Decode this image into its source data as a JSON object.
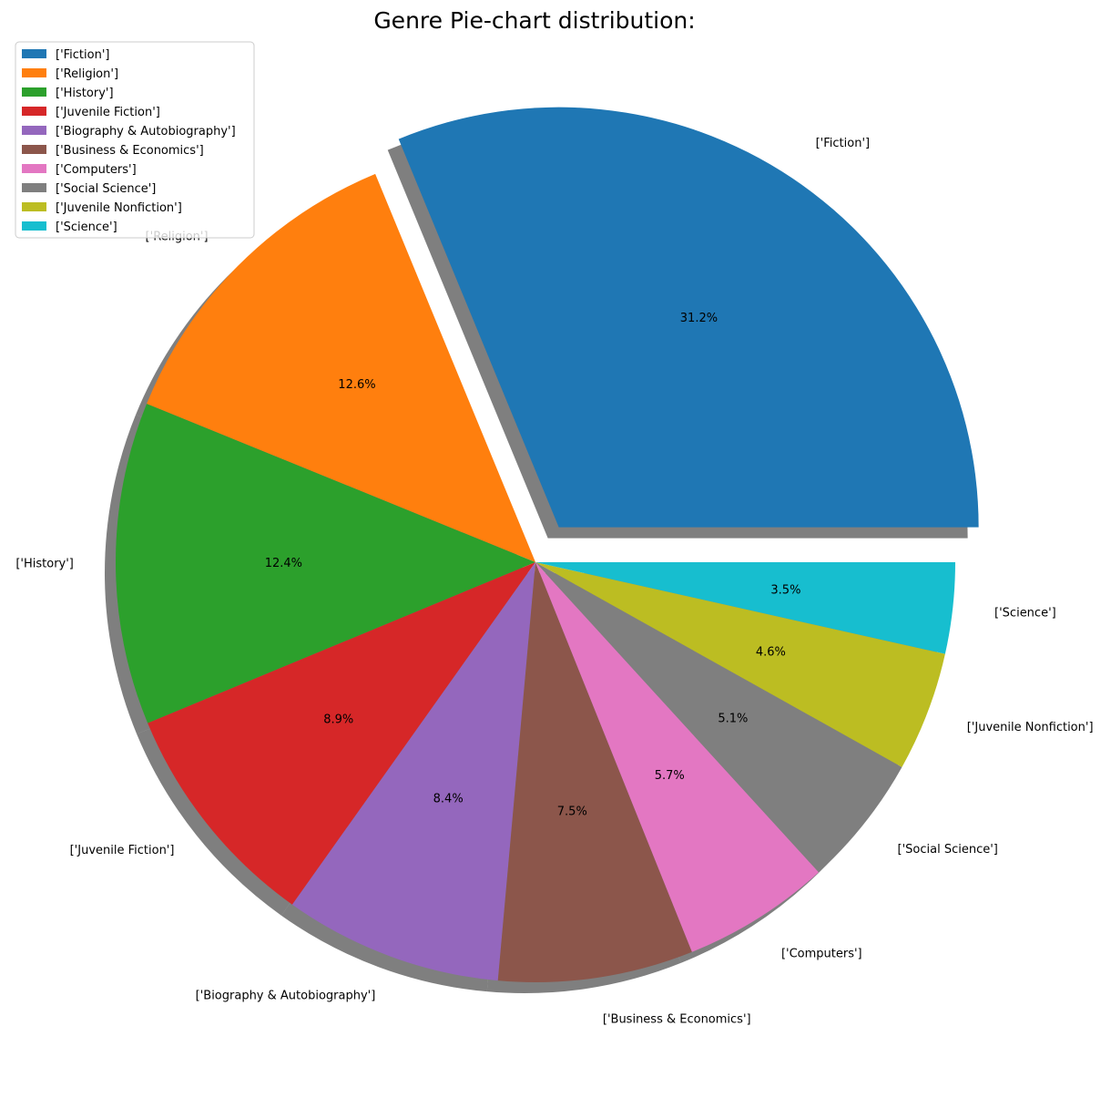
{
  "chart_data": {
    "type": "pie",
    "title": "Genre Pie-chart distribution:",
    "legend_position": "top-left",
    "shadow": true,
    "start_angle": 0,
    "direction": "counterclockwise",
    "slices": [
      {
        "label": "['Fiction']",
        "value": 31.2,
        "pct_text": "31.2%",
        "color": "#1f77b4",
        "exploded": true
      },
      {
        "label": "['Religion']",
        "value": 12.6,
        "pct_text": "12.6%",
        "color": "#ff7f0e",
        "exploded": false
      },
      {
        "label": "['History']",
        "value": 12.4,
        "pct_text": "12.4%",
        "color": "#2ca02c",
        "exploded": false
      },
      {
        "label": "['Juvenile Fiction']",
        "value": 8.9,
        "pct_text": "8.9%",
        "color": "#d62728",
        "exploded": false
      },
      {
        "label": "['Biography & Autobiography']",
        "value": 8.4,
        "pct_text": "8.4%",
        "color": "#9467bd",
        "exploded": false
      },
      {
        "label": "['Business & Economics']",
        "value": 7.5,
        "pct_text": "7.5%",
        "color": "#8c564b",
        "exploded": false
      },
      {
        "label": "['Computers']",
        "value": 5.7,
        "pct_text": "5.7%",
        "color": "#e377c2",
        "exploded": false
      },
      {
        "label": "['Social Science']",
        "value": 5.1,
        "pct_text": "5.1%",
        "color": "#7f7f7f",
        "exploded": false
      },
      {
        "label": "['Juvenile Nonfiction']",
        "value": 4.6,
        "pct_text": "4.6%",
        "color": "#bcbd22",
        "exploded": false
      },
      {
        "label": "['Science']",
        "value": 3.5,
        "pct_text": "3.5%",
        "color": "#17becf",
        "exploded": false
      }
    ]
  }
}
